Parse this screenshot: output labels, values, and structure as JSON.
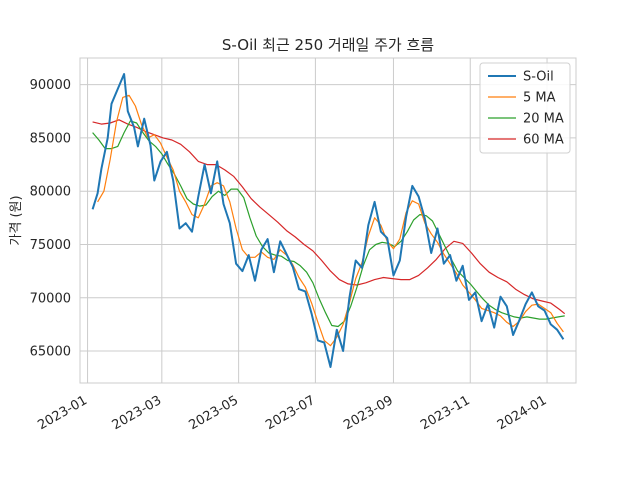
{
  "chart_data": {
    "type": "line",
    "title": "S-Oil 최근 250 거래일 주가 흐름",
    "xlabel": "",
    "ylabel": "가격 (원)",
    "xlim": [
      "2022-12-26",
      "2024-01-24"
    ],
    "ylim": [
      62000,
      92500
    ],
    "grid": true,
    "legend_position": "top-right",
    "x_ticks": [
      "2023-01",
      "2023-03",
      "2023-05",
      "2023-07",
      "2023-09",
      "2023-11",
      "2024-01"
    ],
    "x_tick_dates": [
      "2023-01-01",
      "2023-03-01",
      "2023-05-01",
      "2023-07-01",
      "2023-09-01",
      "2023-11-01",
      "2024-01-01"
    ],
    "y_ticks": [
      65000,
      70000,
      75000,
      80000,
      85000,
      90000
    ],
    "y_tick_labels": [
      "65000",
      "70000",
      "75000",
      "80000",
      "85000",
      "90000"
    ],
    "series": [
      {
        "name": "S-Oil",
        "color": "#1f77b4",
        "x": [
          "2023-01-05",
          "2023-01-09",
          "2023-01-12",
          "2023-01-17",
          "2023-01-20",
          "2023-01-25",
          "2023-01-30",
          "2023-02-02",
          "2023-02-07",
          "2023-02-10",
          "2023-02-15",
          "2023-02-20",
          "2023-02-23",
          "2023-02-28",
          "2023-03-05",
          "2023-03-10",
          "2023-03-15",
          "2023-03-20",
          "2023-03-25",
          "2023-03-30",
          "2023-04-04",
          "2023-04-09",
          "2023-04-14",
          "2023-04-19",
          "2023-04-24",
          "2023-04-29",
          "2023-05-04",
          "2023-05-09",
          "2023-05-14",
          "2023-05-19",
          "2023-05-24",
          "2023-05-29",
          "2023-06-03",
          "2023-06-08",
          "2023-06-13",
          "2023-06-18",
          "2023-06-23",
          "2023-06-28",
          "2023-07-03",
          "2023-07-08",
          "2023-07-13",
          "2023-07-18",
          "2023-07-23",
          "2023-07-28",
          "2023-08-02",
          "2023-08-07",
          "2023-08-12",
          "2023-08-17",
          "2023-08-22",
          "2023-08-27",
          "2023-09-01",
          "2023-09-06",
          "2023-09-11",
          "2023-09-16",
          "2023-09-21",
          "2023-09-26",
          "2023-10-01",
          "2023-10-06",
          "2023-10-11",
          "2023-10-16",
          "2023-10-21",
          "2023-10-26",
          "2023-10-31",
          "2023-11-05",
          "2023-11-10",
          "2023-11-15",
          "2023-11-20",
          "2023-11-25",
          "2023-11-30",
          "2023-12-05",
          "2023-12-10",
          "2023-12-15",
          "2023-12-20",
          "2023-12-25",
          "2023-12-30",
          "2024-01-04",
          "2024-01-09",
          "2024-01-14"
        ],
        "values": [
          78300,
          79800,
          82100,
          85000,
          88200,
          89600,
          91000,
          87500,
          86000,
          84200,
          86800,
          84300,
          81000,
          82800,
          83700,
          81000,
          76500,
          77000,
          76200,
          79500,
          82500,
          79800,
          82800,
          78800,
          77000,
          73200,
          72500,
          74000,
          71600,
          74500,
          75500,
          72400,
          75300,
          74100,
          72900,
          70800,
          70600,
          68500,
          66000,
          65800,
          63500,
          67000,
          65000,
          70000,
          73500,
          72800,
          76800,
          79000,
          76200,
          75600,
          72100,
          73500,
          77600,
          80500,
          79500,
          77400,
          74200,
          76500,
          73200,
          74000,
          71600,
          73000,
          69800,
          70500,
          67800,
          69400,
          67200,
          70100,
          69200,
          66500,
          67900,
          69400,
          70500,
          69200,
          68800,
          67500,
          67000,
          66100
        ]
      },
      {
        "name": "5 MA",
        "color": "#ff7f0e",
        "x": [
          "2023-01-09",
          "2023-01-14",
          "2023-01-19",
          "2023-01-24",
          "2023-01-29",
          "2023-02-03",
          "2023-02-08",
          "2023-02-13",
          "2023-02-18",
          "2023-02-23",
          "2023-02-28",
          "2023-03-05",
          "2023-03-10",
          "2023-03-15",
          "2023-03-20",
          "2023-03-25",
          "2023-03-30",
          "2023-04-04",
          "2023-04-09",
          "2023-04-14",
          "2023-04-19",
          "2023-04-24",
          "2023-04-29",
          "2023-05-04",
          "2023-05-09",
          "2023-05-14",
          "2023-05-19",
          "2023-05-24",
          "2023-05-29",
          "2023-06-03",
          "2023-06-08",
          "2023-06-13",
          "2023-06-18",
          "2023-06-23",
          "2023-06-28",
          "2023-07-03",
          "2023-07-08",
          "2023-07-13",
          "2023-07-18",
          "2023-07-23",
          "2023-07-28",
          "2023-08-02",
          "2023-08-07",
          "2023-08-12",
          "2023-08-17",
          "2023-08-22",
          "2023-08-27",
          "2023-09-01",
          "2023-09-06",
          "2023-09-11",
          "2023-09-16",
          "2023-09-21",
          "2023-09-26",
          "2023-10-01",
          "2023-10-06",
          "2023-10-11",
          "2023-10-16",
          "2023-10-21",
          "2023-10-26",
          "2023-10-31",
          "2023-11-05",
          "2023-11-10",
          "2023-11-15",
          "2023-11-20",
          "2023-11-25",
          "2023-11-30",
          "2023-12-05",
          "2023-12-10",
          "2023-12-15",
          "2023-12-20",
          "2023-12-25",
          "2023-12-30",
          "2024-01-04",
          "2024-01-09",
          "2024-01-14"
        ],
        "values": [
          79000,
          80000,
          83000,
          86500,
          88800,
          89000,
          88000,
          86200,
          85000,
          85300,
          84500,
          83200,
          82000,
          80000,
          79000,
          77800,
          77500,
          78800,
          80500,
          80800,
          80500,
          79000,
          76500,
          74500,
          73800,
          73800,
          74300,
          73800,
          73600,
          74500,
          74000,
          73100,
          71900,
          71000,
          69500,
          67700,
          66000,
          65500,
          66300,
          67500,
          69500,
          71800,
          73300,
          75800,
          77500,
          76800,
          75300,
          74600,
          75500,
          78000,
          79100,
          78800,
          77000,
          76000,
          75200,
          74100,
          73200,
          72300,
          71200,
          70500,
          69800,
          69000,
          68800,
          68600,
          68300,
          67700,
          67300,
          67800,
          68700,
          69300,
          69400,
          69000,
          68600,
          67600,
          66800
        ]
      },
      {
        "name": "20 MA",
        "color": "#2ca02c",
        "x": [
          "2023-01-05",
          "2023-01-10",
          "2023-01-15",
          "2023-01-20",
          "2023-01-25",
          "2023-01-30",
          "2023-02-04",
          "2023-02-09",
          "2023-02-14",
          "2023-02-19",
          "2023-02-24",
          "2023-03-01",
          "2023-03-06",
          "2023-03-11",
          "2023-03-16",
          "2023-03-21",
          "2023-03-26",
          "2023-03-31",
          "2023-04-05",
          "2023-04-10",
          "2023-04-15",
          "2023-04-20",
          "2023-04-25",
          "2023-04-30",
          "2023-05-05",
          "2023-05-10",
          "2023-05-15",
          "2023-05-20",
          "2023-05-25",
          "2023-05-30",
          "2023-06-04",
          "2023-06-09",
          "2023-06-14",
          "2023-06-19",
          "2023-06-24",
          "2023-06-29",
          "2023-07-04",
          "2023-07-09",
          "2023-07-14",
          "2023-07-19",
          "2023-07-24",
          "2023-07-29",
          "2023-08-03",
          "2023-08-08",
          "2023-08-13",
          "2023-08-18",
          "2023-08-23",
          "2023-08-28",
          "2023-09-02",
          "2023-09-07",
          "2023-09-12",
          "2023-09-17",
          "2023-09-22",
          "2023-09-27",
          "2023-10-02",
          "2023-10-07",
          "2023-10-12",
          "2023-10-17",
          "2023-10-22",
          "2023-10-27",
          "2023-11-01",
          "2023-11-06",
          "2023-11-11",
          "2023-11-16",
          "2023-11-21",
          "2023-11-26",
          "2023-12-01",
          "2023-12-06",
          "2023-12-11",
          "2023-12-16",
          "2023-12-21",
          "2023-12-26",
          "2023-12-31",
          "2024-01-05",
          "2024-01-10",
          "2024-01-15"
        ],
        "values": [
          85500,
          84800,
          84000,
          84000,
          84200,
          85500,
          86600,
          86400,
          85500,
          84700,
          84200,
          83500,
          82500,
          81600,
          80500,
          79300,
          78800,
          78600,
          78700,
          79500,
          80000,
          79600,
          80200,
          80200,
          79400,
          77500,
          75800,
          74800,
          74200,
          74000,
          73900,
          73500,
          73400,
          73000,
          72400,
          71400,
          69900,
          68600,
          67400,
          67300,
          67800,
          69200,
          71000,
          73000,
          74500,
          75000,
          75200,
          75100,
          74800,
          75300,
          76200,
          77300,
          77800,
          77700,
          77200,
          76000,
          74800,
          73600,
          72500,
          71900,
          71300,
          70600,
          69900,
          69300,
          68900,
          68600,
          68400,
          68200,
          68100,
          68200,
          68100,
          68000,
          68000,
          68100,
          68200,
          68300
        ]
      },
      {
        "name": "60 MA",
        "color": "#d62728",
        "x": [
          "2023-01-05",
          "2023-01-12",
          "2023-01-19",
          "2023-01-26",
          "2023-02-02",
          "2023-02-09",
          "2023-02-16",
          "2023-02-23",
          "2023-03-02",
          "2023-03-09",
          "2023-03-16",
          "2023-03-23",
          "2023-03-30",
          "2023-04-06",
          "2023-04-13",
          "2023-04-20",
          "2023-04-27",
          "2023-05-04",
          "2023-05-11",
          "2023-05-18",
          "2023-05-25",
          "2023-06-01",
          "2023-06-08",
          "2023-06-15",
          "2023-06-22",
          "2023-06-29",
          "2023-07-06",
          "2023-07-13",
          "2023-07-20",
          "2023-07-27",
          "2023-08-03",
          "2023-08-10",
          "2023-08-17",
          "2023-08-24",
          "2023-08-31",
          "2023-09-07",
          "2023-09-14",
          "2023-09-21",
          "2023-09-28",
          "2023-10-05",
          "2023-10-12",
          "2023-10-19",
          "2023-10-26",
          "2023-11-02",
          "2023-11-09",
          "2023-11-16",
          "2023-11-23",
          "2023-11-30",
          "2023-12-07",
          "2023-12-14",
          "2023-12-21",
          "2023-12-28",
          "2024-01-04",
          "2024-01-11",
          "2024-01-15"
        ],
        "values": [
          86500,
          86300,
          86400,
          86700,
          86300,
          86000,
          85600,
          85300,
          85000,
          84800,
          84400,
          83700,
          82800,
          82500,
          82500,
          82000,
          81400,
          80400,
          79300,
          78500,
          77800,
          77100,
          76300,
          75700,
          75000,
          74400,
          73500,
          72500,
          71700,
          71300,
          71200,
          71400,
          71700,
          71900,
          71800,
          71700,
          71700,
          72100,
          72800,
          73600,
          74600,
          75300,
          75100,
          74200,
          73200,
          72400,
          71900,
          71500,
          70800,
          70300,
          69900,
          69700,
          69500,
          68900,
          68500
        ]
      }
    ]
  }
}
